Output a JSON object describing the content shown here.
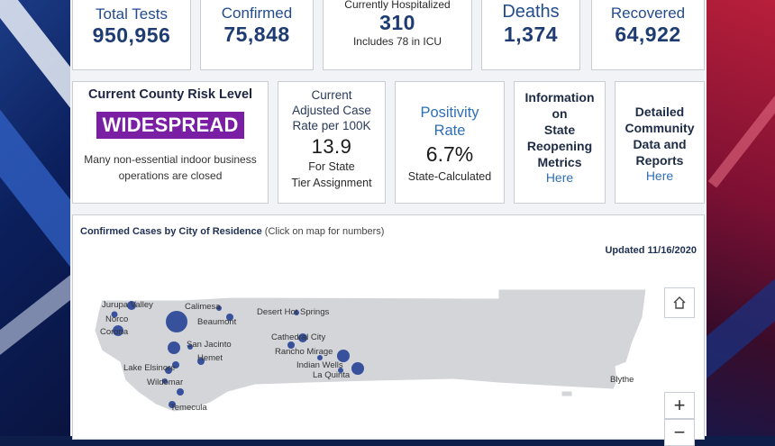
{
  "stats": {
    "total_tests": {
      "label": "Total Tests",
      "value": "950,956"
    },
    "confirmed": {
      "label": "Confirmed",
      "value": "75,848"
    },
    "hospitalized": {
      "label": "Currently Hospitalized",
      "value": "310",
      "note": "Includes 78 in ICU"
    },
    "deaths": {
      "label": "Deaths",
      "value": "1,374"
    },
    "recovered": {
      "label": "Recovered",
      "value": "64,922"
    }
  },
  "risk": {
    "title": "Current County Risk Level",
    "level": "WIDESPREAD",
    "note_line1": "Many non-essential indoor business",
    "note_line2": "operations are closed",
    "badge_color": "#7a1ea3"
  },
  "case_rate": {
    "label_line1": "Current",
    "label_line2": "Adjusted Case",
    "label_line3": "Rate per 100K",
    "value": "13.9",
    "note_line1": "For State",
    "note_line2": "Tier Assignment"
  },
  "positivity": {
    "label_line1": "Positivity",
    "label_line2": "Rate",
    "value": "6.7%",
    "note": "State-Calculated"
  },
  "reopening": {
    "line1": "Information",
    "line2": "on",
    "line3": "State",
    "line4": "Reopening",
    "line5": "Metrics",
    "link": "Here"
  },
  "community": {
    "line1": "Detailed",
    "line2": "Community",
    "line3": "Data and",
    "line4": "Reports",
    "link": "Here"
  },
  "map": {
    "title": "Confirmed Cases by City of Residence",
    "hint": "(Click on map for numbers)",
    "updated": "Updated 11/16/2020",
    "zoom_in": "+",
    "zoom_out": "−",
    "cities": {
      "jurupa_valley": "Jurupa Valley",
      "norco": "Norco",
      "corona": "Corona",
      "calimesa": "Calimesa",
      "beaumont": "Beaumont",
      "san_jacinto": "San Jacinto",
      "hemet": "Hemet",
      "lake_elsinore": "Lake Elsinore",
      "wildomar": "Wildomar",
      "temecula": "Temecula",
      "desert_hot_springs": "Desert Hot Springs",
      "cathedral_city": "Cathedral City",
      "rancho_mirage": "Rancho Mirage",
      "indian_wells": "Indian Wells",
      "la_quinta": "La Quinta",
      "blythe": "Blythe"
    },
    "accent": "#2e4a9a"
  }
}
